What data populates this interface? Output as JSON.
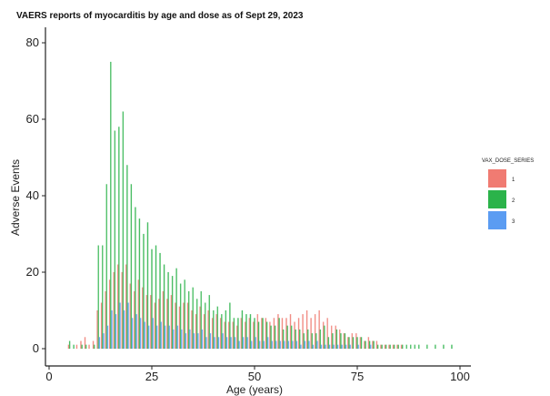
{
  "chart_data": {
    "type": "bar",
    "title": "VAERS reports of myocarditis by age and dose as of Sept 29, 2023",
    "xlabel": "Age (years)",
    "ylabel": "Adverse Events",
    "xlim": [
      0,
      100
    ],
    "ylim": [
      0,
      85
    ],
    "xticks": [
      "0",
      "25",
      "50",
      "75",
      "100"
    ],
    "yticks": [
      "0",
      "20",
      "40",
      "60",
      "80"
    ],
    "grid": false,
    "legend": {
      "title": "VAX_DOSE_SERIES",
      "placement": "right",
      "labels": [
        "1",
        "2",
        "3"
      ]
    },
    "colors": [
      "#f07b72",
      "#2bb34a",
      "#5b9cf2"
    ],
    "x": [
      5,
      6,
      7,
      8,
      9,
      10,
      11,
      12,
      13,
      14,
      15,
      16,
      17,
      18,
      19,
      20,
      21,
      22,
      23,
      24,
      25,
      26,
      27,
      28,
      29,
      30,
      31,
      32,
      33,
      34,
      35,
      36,
      37,
      38,
      39,
      40,
      41,
      42,
      43,
      44,
      45,
      46,
      47,
      48,
      49,
      50,
      51,
      52,
      53,
      54,
      55,
      56,
      57,
      58,
      59,
      60,
      61,
      62,
      63,
      64,
      65,
      66,
      67,
      68,
      69,
      70,
      71,
      72,
      73,
      74,
      75,
      76,
      77,
      78,
      79,
      80,
      81,
      82,
      83,
      84,
      85,
      86,
      87,
      88,
      89,
      90,
      92,
      94,
      96,
      98
    ],
    "series": [
      {
        "name": "1",
        "values": [
          1,
          0,
          1,
          2,
          3,
          1,
          2,
          10,
          12,
          15,
          18,
          20,
          22,
          20,
          22,
          17,
          15,
          18,
          16,
          14,
          14,
          12,
          13,
          15,
          13,
          14,
          12,
          11,
          12,
          12,
          10,
          9,
          11,
          9,
          10,
          8,
          9,
          8,
          7,
          7,
          7,
          6,
          8,
          7,
          8,
          7,
          9,
          8,
          8,
          7,
          8,
          9,
          8,
          8,
          9,
          7,
          8,
          9,
          10,
          8,
          9,
          10,
          7,
          8,
          6,
          6,
          5,
          4,
          3,
          4,
          4,
          3,
          2,
          3,
          2,
          2,
          1,
          1,
          1,
          1,
          1,
          1,
          0,
          0,
          0,
          0,
          0,
          0,
          0,
          0
        ]
      },
      {
        "name": "2",
        "values": [
          2,
          1,
          0,
          1,
          1,
          0,
          1,
          27,
          27,
          43,
          75,
          57,
          58,
          62,
          48,
          43,
          37,
          34,
          30,
          33,
          26,
          27,
          25,
          22,
          20,
          19,
          21,
          17,
          18,
          15,
          16,
          13,
          15,
          12,
          14,
          10,
          11,
          9,
          10,
          12,
          8,
          8,
          10,
          9,
          9,
          8,
          7,
          8,
          7,
          6,
          6,
          8,
          5,
          6,
          6,
          5,
          5,
          4,
          5,
          4,
          4,
          5,
          6,
          3,
          4,
          5,
          4,
          4,
          3,
          3,
          3,
          3,
          2,
          2,
          2,
          1,
          1,
          1,
          1,
          1,
          1,
          1,
          1,
          1,
          1,
          1,
          1,
          1,
          1,
          1
        ]
      },
      {
        "name": "3",
        "values": [
          0,
          0,
          0,
          0,
          0,
          0,
          0,
          3,
          4,
          6,
          10,
          9,
          12,
          10,
          12,
          8,
          9,
          8,
          7,
          6,
          8,
          6,
          7,
          6,
          6,
          5,
          6,
          5,
          4,
          5,
          4,
          4,
          5,
          3,
          4,
          3,
          3,
          4,
          3,
          3,
          3,
          2,
          3,
          3,
          2,
          3,
          2,
          2,
          3,
          2,
          2,
          2,
          2,
          2,
          2,
          2,
          1,
          2,
          2,
          1,
          2,
          1,
          1,
          1,
          1,
          1,
          1,
          1,
          1,
          0,
          1,
          0,
          0,
          1,
          0,
          0,
          0,
          0,
          0,
          0,
          0,
          0,
          0,
          0,
          0,
          0,
          0,
          0,
          0,
          0
        ]
      }
    ]
  }
}
